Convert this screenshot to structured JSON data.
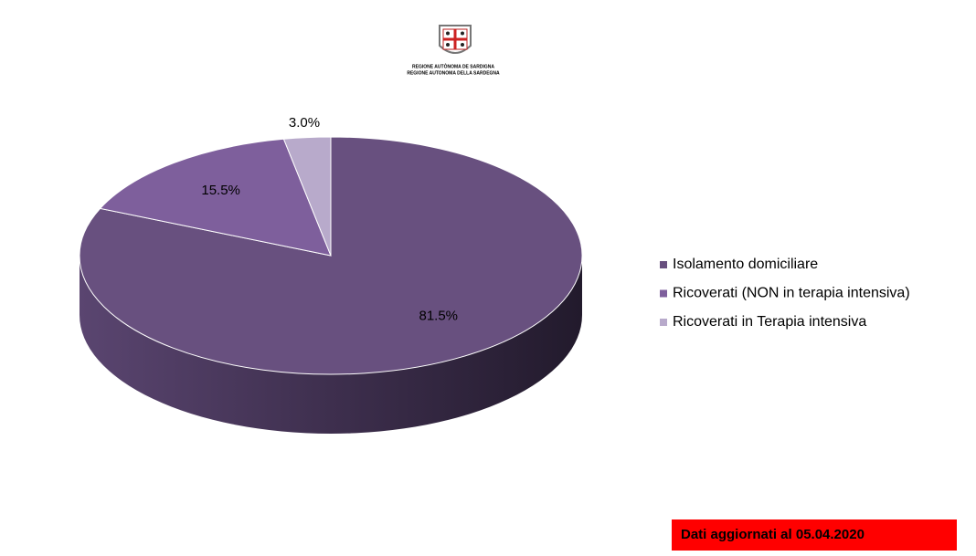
{
  "chart_data": {
    "type": "pie",
    "header": [
      "REGIONE AUTÒNOMA DE SARDIGNA",
      "REGIONE AUTONOMA DELLA SARDEGNA"
    ],
    "categories": [
      "Isolamento domiciliare",
      "Ricoverati (NON in terapia intensiva)",
      "Ricoverati in Terapia intensiva"
    ],
    "values": [
      81.5,
      15.5,
      3.0
    ],
    "value_labels": [
      "81.5%",
      "15.5%",
      "3.0%"
    ],
    "colors": [
      "#68507f",
      "#7e5f9c",
      "#b8aacb"
    ],
    "legend": "right",
    "note": "Dati aggiornati al 05.04.2020"
  }
}
